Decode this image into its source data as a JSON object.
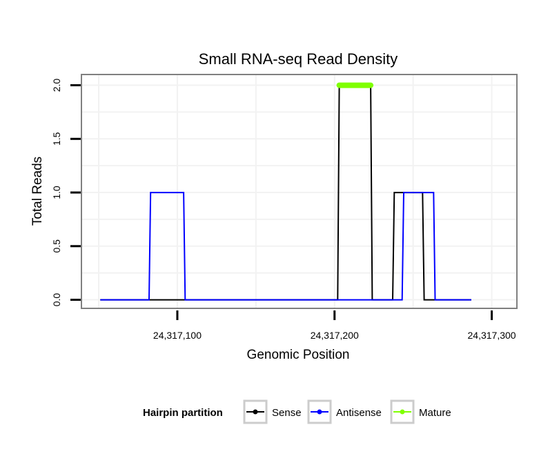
{
  "chart_data": {
    "type": "line",
    "title": "Small RNA-seq Read Density",
    "xlabel": "Genomic Position",
    "ylabel": "Total Reads",
    "xlim": [
      24317039,
      24317316
    ],
    "ylim": [
      -0.08,
      2.1
    ],
    "xticks": [
      {
        "value": 24317100,
        "label": "24,317,100"
      },
      {
        "value": 24317200,
        "label": "24,317,200"
      },
      {
        "value": 24317300,
        "label": "24,317,300"
      }
    ],
    "yticks": [
      {
        "value": 0.0,
        "label": "0.0"
      },
      {
        "value": 0.5,
        "label": "0.5"
      },
      {
        "value": 1.0,
        "label": "1.0"
      },
      {
        "value": 1.5,
        "label": "1.5"
      },
      {
        "value": 2.0,
        "label": "2.0"
      }
    ],
    "series": [
      {
        "name": "Sense",
        "color": "#000000",
        "points": [
          [
            24317051,
            0
          ],
          [
            24317202,
            0
          ],
          [
            24317203,
            2
          ],
          [
            24317223,
            2
          ],
          [
            24317224,
            0
          ],
          [
            24317237,
            0
          ],
          [
            24317238,
            1
          ],
          [
            24317256,
            1
          ],
          [
            24317257,
            0
          ],
          [
            24317287,
            0
          ]
        ]
      },
      {
        "name": "Antisense",
        "color": "#0000ff",
        "points": [
          [
            24317051,
            0
          ],
          [
            24317082,
            0
          ],
          [
            24317083,
            1
          ],
          [
            24317104,
            1
          ],
          [
            24317105,
            0
          ],
          [
            24317243,
            0
          ],
          [
            24317244,
            1
          ],
          [
            24317263,
            1
          ],
          [
            24317264,
            0
          ],
          [
            24317287,
            0
          ]
        ]
      },
      {
        "name": "Mature",
        "color": "#7fff00",
        "points": [
          [
            24317203,
            2
          ],
          [
            24317223,
            2
          ]
        ]
      }
    ],
    "legend": {
      "title": "Hairpin partition",
      "position": "bottom",
      "entries": [
        "Sense",
        "Antisense",
        "Mature"
      ]
    },
    "grid": true
  }
}
